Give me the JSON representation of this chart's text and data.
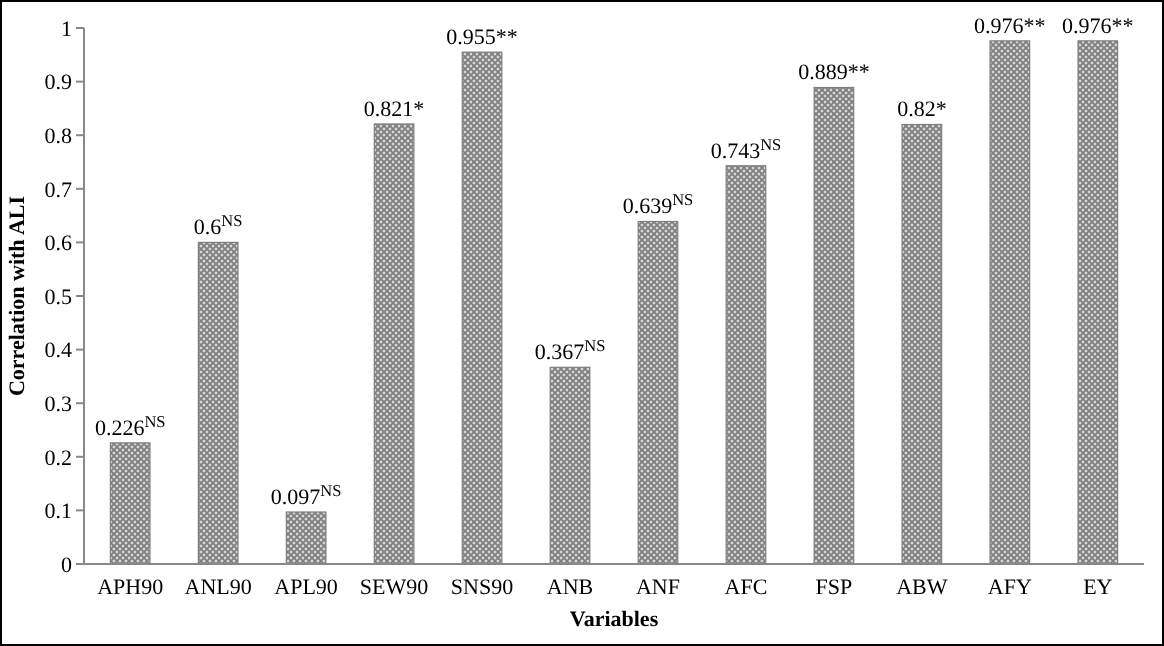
{
  "chart_data": {
    "type": "bar",
    "xlabel": "Variables",
    "ylabel": "Correlation with ALI",
    "categories": [
      "APH90",
      "ANL90",
      "APL90",
      "SEW90",
      "SNS90",
      "ANB",
      "ANF",
      "AFC",
      "FSP",
      "ABW",
      "AFY",
      "EY"
    ],
    "values": [
      0.226,
      0.6,
      0.097,
      0.821,
      0.955,
      0.367,
      0.639,
      0.743,
      0.889,
      0.82,
      0.976,
      0.976
    ],
    "value_labels": [
      "0.226$^{NS}$",
      "0.6$^{NS}$",
      "0.097$^{NS}$",
      "0.821*",
      "0.955**",
      "0.367$^{NS}$",
      "0.639$^{NS}$",
      "0.743$^{NS}$",
      "0.889**",
      "0.82*",
      "0.976**",
      "0.976**"
    ],
    "color": "#7f7f7f",
    "ylim": [
      0,
      1
    ],
    "yticks": [
      0,
      0.1,
      0.2,
      0.3,
      0.4,
      0.5,
      0.6,
      0.7,
      0.8,
      0.9,
      1
    ],
    "grid": false
  }
}
